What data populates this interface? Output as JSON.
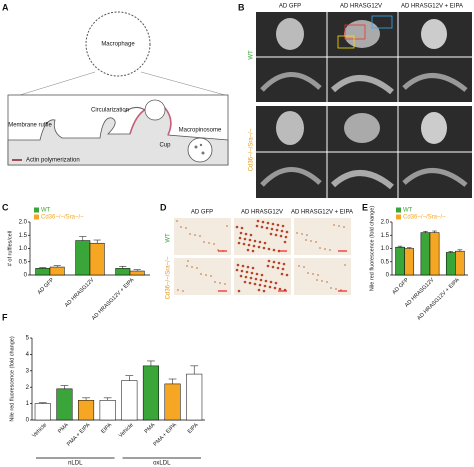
{
  "panels": {
    "a": {
      "label": "A",
      "macrophage": "Macrophage",
      "ruffle": "Membrane ruffle",
      "circ": "Circularization",
      "cup": "Cup",
      "macropinosome": "Macropinosome",
      "legend": "Actin polymerization"
    },
    "b": {
      "label": "B",
      "columns": [
        "AD GFP",
        "AD HRASG12V",
        "AD HRASG12V + EIPA"
      ],
      "rows": [
        "WT",
        "Cd36−/−/Sra−/−"
      ]
    },
    "c": {
      "label": "C"
    },
    "d": {
      "label": "D",
      "columns": [
        "AD GFP",
        "AD HRASG12V",
        "AD HRASG12V + EIPA"
      ],
      "rows": [
        "WT",
        "Cd36−/−/Sra−/−"
      ]
    },
    "e": {
      "label": "E"
    },
    "f": {
      "label": "F"
    }
  },
  "chart_data": [
    {
      "type": "bar",
      "ylabel": "# of ruffles/cell",
      "legend": "top-left",
      "categories": [
        "AD GFP",
        "AD HRASG12V",
        "AD HRASG12V + EIPA"
      ],
      "ylim": [
        0,
        2
      ],
      "yticks": [
        0,
        0.5,
        {
          "value": 1,
          "label": "1.0"
        },
        1.5,
        {
          "value": 2,
          "label": "2.0"
        }
      ],
      "series": [
        {
          "name": "WT",
          "color": "#3aa63a",
          "values": [
            0.25,
            1.3,
            0.25
          ],
          "errors": [
            0.03,
            0.15,
            0.08
          ]
        },
        {
          "name": "Cd36−/−/Sra−/−",
          "color": "#f5a623",
          "values": [
            0.3,
            1.2,
            0.15
          ],
          "errors": [
            0.05,
            0.12,
            0.05
          ]
        }
      ]
    },
    {
      "type": "bar",
      "ylabel": "Nile red fluorescence (fold change)",
      "legend": "top-left",
      "categories": [
        "AD GFP",
        "AD HRASG12V",
        "AD HRASG12V + EIPA"
      ],
      "ylim": [
        0,
        2
      ],
      "yticks": [
        0,
        0.5,
        {
          "value": 1,
          "label": "1.0"
        },
        1.5,
        {
          "value": 2,
          "label": "2.0"
        }
      ],
      "series": [
        {
          "name": "WT",
          "color": "#3aa63a",
          "values": [
            1.05,
            1.6,
            0.85
          ],
          "errors": [
            0.04,
            0.05,
            0.04
          ]
        },
        {
          "name": "Cd36−/−/Sra−/−",
          "color": "#f5a623",
          "values": [
            1.0,
            1.6,
            0.9
          ],
          "errors": [
            0.03,
            0.06,
            0.05
          ]
        }
      ]
    },
    {
      "type": "bar",
      "ylabel": "Nile red fluorescence (fold change)",
      "categories": [
        "Vehicle",
        "PMA",
        "PMA + EIPA",
        "EIPA",
        "Vehicle",
        "PMA",
        "PMA + EIPA",
        "EIPA"
      ],
      "group_labels": [
        "nLDL",
        "oxLDL"
      ],
      "ylim": [
        0,
        5
      ],
      "yticks": [
        0,
        1,
        2,
        3,
        4,
        5
      ],
      "series": [
        {
          "colors": [
            "#ffffff",
            "#3aa63a",
            "#f5a623",
            "#ffffff",
            "#ffffff",
            "#3aa63a",
            "#f5a623",
            "#ffffff"
          ],
          "values": [
            1.0,
            1.9,
            1.2,
            1.2,
            2.4,
            3.3,
            2.2,
            2.8
          ],
          "errors": [
            0.05,
            0.2,
            0.15,
            0.15,
            0.3,
            0.3,
            0.3,
            0.5
          ]
        }
      ]
    }
  ]
}
